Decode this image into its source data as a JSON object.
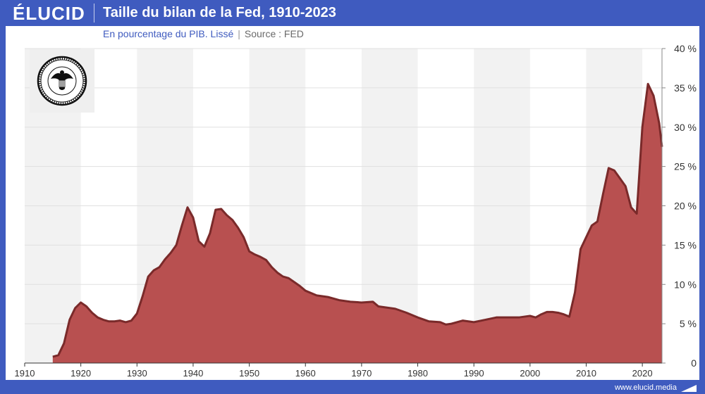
{
  "header": {
    "logo": "ÉLUCID",
    "title": "Taille du bilan de la Fed, 1910-2023",
    "subtitle": "En pourcentage du PIB. Lissé",
    "separator": "|",
    "source": "Source : FED"
  },
  "footer": {
    "url": "www.elucid.media"
  },
  "colors": {
    "brand": "#3f5bbf",
    "area_fill": "#b85050",
    "area_line": "#7a2a2a",
    "band": "#f2f2f2"
  },
  "seal": {
    "icon": "federal-reserve-seal-icon",
    "text": "UNITED STATES FEDERAL RESERVE SYSTEM"
  },
  "chart_data": {
    "type": "area",
    "title": "Taille du bilan de la Fed, 1910-2023",
    "subtitle": "En pourcentage du PIB. Lissé",
    "xlabel": "",
    "ylabel": "",
    "xlim": [
      1910,
      2023.5
    ],
    "ylim": [
      0,
      40
    ],
    "x_ticks": [
      1910,
      1920,
      1930,
      1940,
      1950,
      1960,
      1970,
      1980,
      1990,
      2000,
      2010,
      2020
    ],
    "x_tick_labels": [
      "1910",
      "1920",
      "1930",
      "1940",
      "1950",
      "1960",
      "1970",
      "1980",
      "1990",
      "2000",
      "2010",
      "2020"
    ],
    "y_ticks": [
      0,
      5,
      10,
      15,
      20,
      25,
      30,
      35,
      40
    ],
    "y_tick_labels": [
      "0",
      "5 %",
      "10 %",
      "15 %",
      "20 %",
      "25 %",
      "30 %",
      "35 %",
      "40 %"
    ],
    "grid": "horizontal",
    "series": [
      {
        "values_x": [
          1915,
          1916,
          1917,
          1918,
          1919,
          1920,
          1921,
          1922,
          1923,
          1924,
          1925,
          1926,
          1927,
          1928,
          1929,
          1930,
          1931,
          1932,
          1933,
          1934,
          1935,
          1936,
          1937,
          1938,
          1939,
          1940,
          1941,
          1942,
          1943,
          1944,
          1945,
          1946,
          1947,
          1948,
          1949,
          1950,
          1951,
          1952,
          1953,
          1954,
          1955,
          1956,
          1957,
          1958,
          1959,
          1960,
          1962,
          1964,
          1966,
          1968,
          1970,
          1972,
          1973,
          1974,
          1976,
          1978,
          1980,
          1982,
          1984,
          1985,
          1986,
          1988,
          1990,
          1992,
          1994,
          1996,
          1998,
          2000,
          2001,
          2002,
          2003,
          2004,
          2005,
          2006,
          2007,
          2008,
          2009,
          2010,
          2011,
          2012,
          2013,
          2014,
          2015,
          2016,
          2017,
          2018,
          2019,
          2020,
          2021,
          2022,
          2023,
          2023.5
        ],
        "values_y": [
          0.8,
          1.0,
          2.5,
          5.5,
          7.0,
          7.7,
          7.2,
          6.4,
          5.8,
          5.5,
          5.3,
          5.3,
          5.4,
          5.2,
          5.4,
          6.3,
          8.5,
          11.0,
          11.8,
          12.2,
          13.2,
          14.0,
          15.0,
          17.5,
          19.8,
          18.5,
          15.5,
          14.8,
          16.5,
          19.5,
          19.6,
          18.8,
          18.2,
          17.2,
          16.0,
          14.2,
          13.8,
          13.5,
          13.1,
          12.2,
          11.5,
          11.0,
          10.8,
          10.3,
          9.8,
          9.2,
          8.6,
          8.4,
          8.0,
          7.8,
          7.7,
          7.8,
          7.2,
          7.1,
          6.9,
          6.4,
          5.8,
          5.3,
          5.2,
          4.9,
          5.0,
          5.4,
          5.2,
          5.5,
          5.8,
          5.8,
          5.8,
          6.0,
          5.8,
          6.2,
          6.5,
          6.5,
          6.4,
          6.2,
          5.9,
          9.0,
          14.5,
          16.0,
          17.5,
          18.0,
          21.5,
          24.8,
          24.5,
          23.5,
          22.5,
          19.8,
          19.0,
          30.0,
          35.5,
          34.0,
          30.5,
          27.5
        ]
      }
    ]
  }
}
